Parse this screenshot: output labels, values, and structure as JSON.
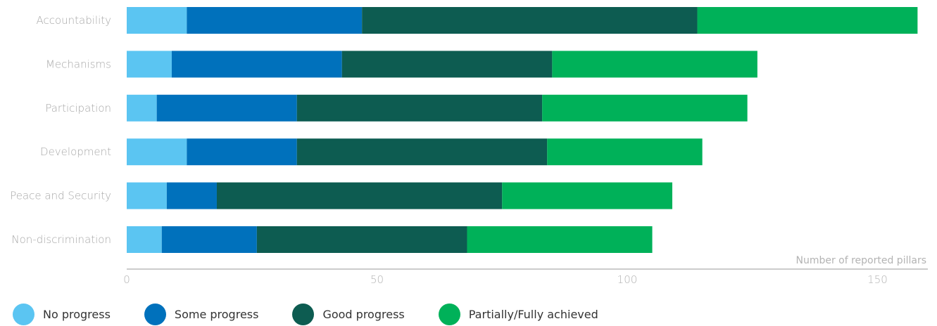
{
  "chart_data": {
    "type": "bar",
    "orientation": "horizontal",
    "stacked": true,
    "categories": [
      "Accountability",
      "Mechanisms",
      "Participation",
      "Development",
      "Peace and Security",
      "Non-discrimination"
    ],
    "series": [
      {
        "name": "No progress",
        "color": "#5bc5f2",
        "values": [
          12,
          9,
          6,
          12,
          8,
          7
        ]
      },
      {
        "name": "Some progress",
        "color": "#0071bc",
        "values": [
          35,
          34,
          28,
          22,
          10,
          19
        ]
      },
      {
        "name": "Good progress",
        "color": "#0d5c51",
        "values": [
          67,
          42,
          49,
          50,
          57,
          42
        ]
      },
      {
        "name": "Partially/Fully achieved",
        "color": "#00b159",
        "values": [
          44,
          41,
          41,
          31,
          34,
          37
        ]
      }
    ],
    "xlabel": "Number of reported pillars",
    "ylabel": "",
    "xlim": [
      0,
      160
    ],
    "xticks": [
      0,
      50,
      100,
      150
    ],
    "grid": false,
    "legend_position": "bottom"
  }
}
